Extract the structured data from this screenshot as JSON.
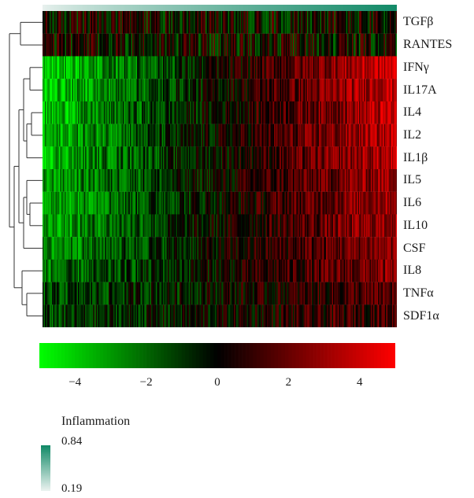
{
  "chart_data": {
    "type": "heatmap",
    "rows": [
      "TGFβ",
      "RANTES",
      "IFNγ",
      "IL17A",
      "IL4",
      "IL2",
      "IL1β",
      "IL5",
      "IL6",
      "IL10",
      "CSF",
      "IL8",
      "TNFα",
      "SDF1α"
    ],
    "row_gradient_trend": [
      0.1,
      0.1,
      4.2,
      4.0,
      3.8,
      3.6,
      3.5,
      3.2,
      3.3,
      3.1,
      2.8,
      2.5,
      1.6,
      1.4
    ],
    "color_scale": {
      "low_color": "#00ff00",
      "mid_color": "#000000",
      "high_color": "#ff0000",
      "range": [
        -5,
        5
      ],
      "ticks": [
        "−4",
        "−2",
        "0",
        "2",
        "4"
      ],
      "tick_values": [
        -4,
        -2,
        0,
        2,
        4
      ]
    },
    "column_annotation": {
      "title": "Inflammation",
      "max_label": "0.84",
      "min_label": "0.19",
      "range": [
        0.19,
        0.84
      ],
      "low_color": "#e8f1ee",
      "high_color": "#138a68"
    },
    "row_dendrogram": true,
    "column_count": 300
  }
}
